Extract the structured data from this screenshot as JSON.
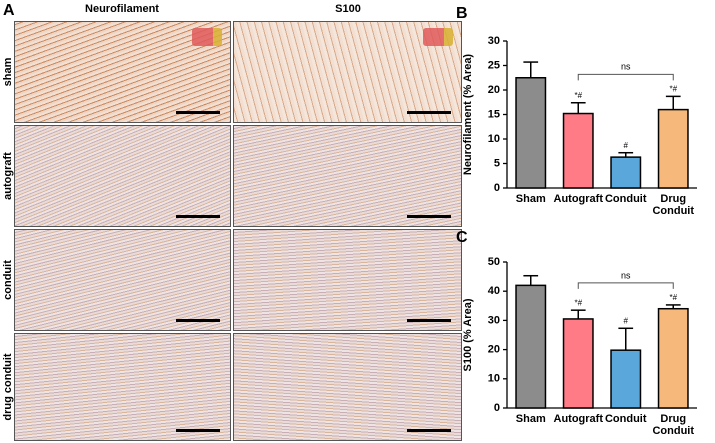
{
  "panel_a": {
    "label": "A",
    "columns": [
      "Neurofilament",
      "S100"
    ],
    "rows": [
      "sham",
      "autograft",
      "conduit",
      "drug conduit"
    ]
  },
  "chart_data": [
    {
      "type": "bar",
      "panel_label": "B",
      "ylabel": "Neurofilament (% Area)",
      "categories": [
        "Sham",
        "Autograft",
        "Conduit",
        "Drug Conduit"
      ],
      "values": [
        22.5,
        15.2,
        6.3,
        16.0
      ],
      "errors": [
        3.2,
        2.2,
        0.9,
        2.7
      ],
      "colors": [
        "#8c8c8c",
        "#ff7b86",
        "#5aa7dc",
        "#f6b97b"
      ],
      "significance": [
        null,
        "*#",
        "#",
        "*#"
      ],
      "comparison": {
        "label": "ns",
        "from": "Autograft",
        "to": "Drug Conduit"
      },
      "ylim": [
        0,
        30
      ],
      "yticks": [
        0,
        5,
        10,
        15,
        20,
        25,
        30
      ]
    },
    {
      "type": "bar",
      "panel_label": "C",
      "ylabel": "S100 (% Area)",
      "categories": [
        "Sham",
        "Autograft",
        "Conduit",
        "Drug Conduit"
      ],
      "values": [
        42.0,
        30.5,
        19.8,
        34.0
      ],
      "errors": [
        3.3,
        3.0,
        7.5,
        1.3
      ],
      "colors": [
        "#8c8c8c",
        "#ff7b86",
        "#5aa7dc",
        "#f6b97b"
      ],
      "significance": [
        null,
        "*#",
        "#",
        "*#"
      ],
      "comparison": {
        "label": "ns",
        "from": "Autograft",
        "to": "Drug Conduit"
      },
      "ylim": [
        0,
        50
      ],
      "yticks": [
        0,
        10,
        20,
        30,
        40,
        50
      ]
    }
  ]
}
